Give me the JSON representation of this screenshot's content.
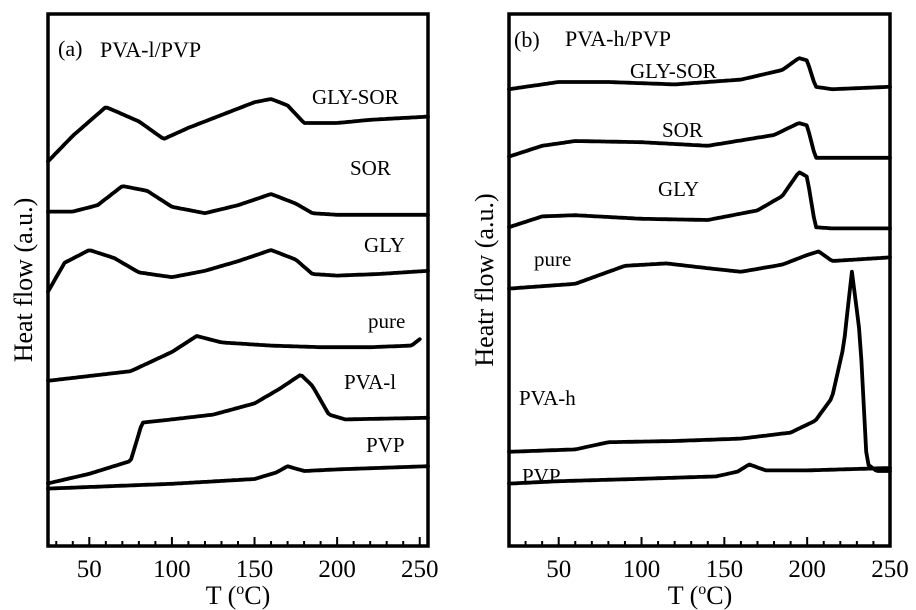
{
  "chart_data": [
    {
      "type": "line",
      "panel_label": "(a)",
      "title": "PVA-l/PVP",
      "xlabel": "T (",
      "xlabel_sup": "o",
      "xlabel_end": "C)",
      "ylabel": "Heat flow (a.u.)",
      "xlim": [
        25,
        255
      ],
      "xticks": [
        50,
        100,
        150,
        200,
        250
      ],
      "xtick_labels": [
        "50",
        "100",
        "150",
        "200",
        "250"
      ],
      "y_ticks_labeled": false,
      "grid": false,
      "legend": "none",
      "series": [
        {
          "name": "GLY-SOR",
          "x": [
            25,
            40,
            60,
            80,
            95,
            110,
            130,
            150,
            160,
            170,
            180,
            200,
            220,
            255
          ],
          "y": [
            -3.4,
            -1.8,
            0.0,
            -0.9,
            -2.0,
            -1.3,
            -0.5,
            0.3,
            0.5,
            0.1,
            -1.0,
            -1.0,
            -0.8,
            -0.6
          ]
        },
        {
          "name": "SOR",
          "x": [
            25,
            40,
            55,
            70,
            85,
            100,
            120,
            140,
            160,
            175,
            185,
            200,
            255
          ],
          "y": [
            -1.6,
            -1.6,
            -1.2,
            0.0,
            -0.3,
            -1.3,
            -1.7,
            -1.2,
            -0.5,
            -1.1,
            -1.7,
            -1.8,
            -1.8
          ]
        },
        {
          "name": "GLY",
          "x": [
            25,
            35,
            50,
            65,
            80,
            100,
            120,
            140,
            160,
            175,
            185,
            200,
            225,
            255
          ],
          "y": [
            -2.6,
            -0.8,
            0.0,
            -0.5,
            -1.4,
            -1.7,
            -1.3,
            -0.7,
            0.0,
            -0.6,
            -1.5,
            -1.6,
            -1.5,
            -1.3
          ]
        },
        {
          "name": "pure",
          "x": [
            25,
            50,
            75,
            100,
            115,
            130,
            160,
            190,
            220,
            245,
            250
          ],
          "y": [
            -2.8,
            -2.5,
            -2.2,
            -1.0,
            0.0,
            -0.4,
            -0.6,
            -0.7,
            -0.7,
            -0.6,
            -0.2
          ]
        },
        {
          "name": "PVA-l",
          "x": [
            25,
            50,
            75,
            82,
            100,
            125,
            150,
            165,
            178,
            185,
            195,
            205,
            255
          ],
          "y": [
            -4.4,
            -3.8,
            -3.0,
            -0.6,
            -0.4,
            -0.1,
            0.6,
            1.5,
            2.4,
            1.7,
            -0.1,
            -0.4,
            -0.3
          ]
        },
        {
          "name": "PVP",
          "x": [
            25,
            50,
            100,
            150,
            163,
            170,
            180,
            200,
            255
          ],
          "y": [
            -1.1,
            -1.0,
            -0.8,
            -0.5,
            -0.1,
            0.3,
            0.0,
            0.1,
            0.3
          ]
        }
      ],
      "curve_labels": [
        "GLY-SOR",
        "SOR",
        "GLY",
        "pure",
        "PVA-l",
        "PVP"
      ]
    },
    {
      "type": "line",
      "panel_label": "(b)",
      "title": "PVA-h/PVP",
      "xlabel": "T (",
      "xlabel_sup": "o",
      "xlabel_end": "C)",
      "ylabel": "Heatr flow (a.u.)",
      "xlim": [
        20,
        250
      ],
      "xticks": [
        50,
        100,
        150,
        200,
        250
      ],
      "xtick_labels": [
        "50",
        "100",
        "150",
        "200",
        "250"
      ],
      "y_ticks_labeled": false,
      "grid": false,
      "legend": "none",
      "series": [
        {
          "name": "GLY-SOR",
          "x": [
            20,
            50,
            80,
            120,
            160,
            185,
            195,
            200,
            205,
            215,
            250
          ],
          "y": [
            -2.6,
            -2.0,
            -2.0,
            -2.2,
            -1.8,
            -1.0,
            0.0,
            -0.2,
            -2.4,
            -2.6,
            -2.4
          ]
        },
        {
          "name": "SOR",
          "x": [
            20,
            40,
            60,
            100,
            140,
            180,
            195,
            200,
            205,
            215,
            250
          ],
          "y": [
            -2.8,
            -1.9,
            -1.5,
            -1.6,
            -1.9,
            -1.0,
            0.0,
            -0.2,
            -2.9,
            -2.9,
            -2.9
          ]
        },
        {
          "name": "GLY",
          "x": [
            20,
            40,
            60,
            100,
            140,
            170,
            185,
            195,
            200,
            205,
            215,
            250
          ],
          "y": [
            -4.6,
            -3.7,
            -3.6,
            -3.9,
            -4.0,
            -3.2,
            -2.0,
            0.0,
            -0.4,
            -4.6,
            -4.7,
            -4.7
          ]
        },
        {
          "name": "pure",
          "x": [
            20,
            60,
            90,
            115,
            140,
            160,
            185,
            200,
            207,
            215,
            250
          ],
          "y": [
            -2.8,
            -2.4,
            -0.9,
            -0.7,
            -1.1,
            -1.4,
            -0.8,
            0.0,
            0.3,
            -0.5,
            -0.2
          ]
        },
        {
          "name": "PVA-h",
          "x": [
            20,
            60,
            80,
            120,
            160,
            190,
            205,
            215,
            222,
            227,
            232,
            236,
            242,
            250
          ],
          "y": [
            -6.4,
            -6.2,
            -5.6,
            -5.5,
            -5.3,
            -4.8,
            -3.8,
            -1.9,
            2.4,
            8.6,
            3.2,
            -7.4,
            -8.0,
            -8.0
          ]
        },
        {
          "name": "PVP",
          "x": [
            20,
            50,
            100,
            145,
            158,
            165,
            175,
            200,
            250
          ],
          "y": [
            -0.8,
            -0.6,
            -0.4,
            -0.2,
            0.2,
            0.8,
            0.3,
            0.3,
            0.5
          ]
        }
      ],
      "curve_labels": [
        "GLY-SOR",
        "SOR",
        "GLY",
        "pure",
        "PVA-h",
        "PVP"
      ]
    }
  ]
}
